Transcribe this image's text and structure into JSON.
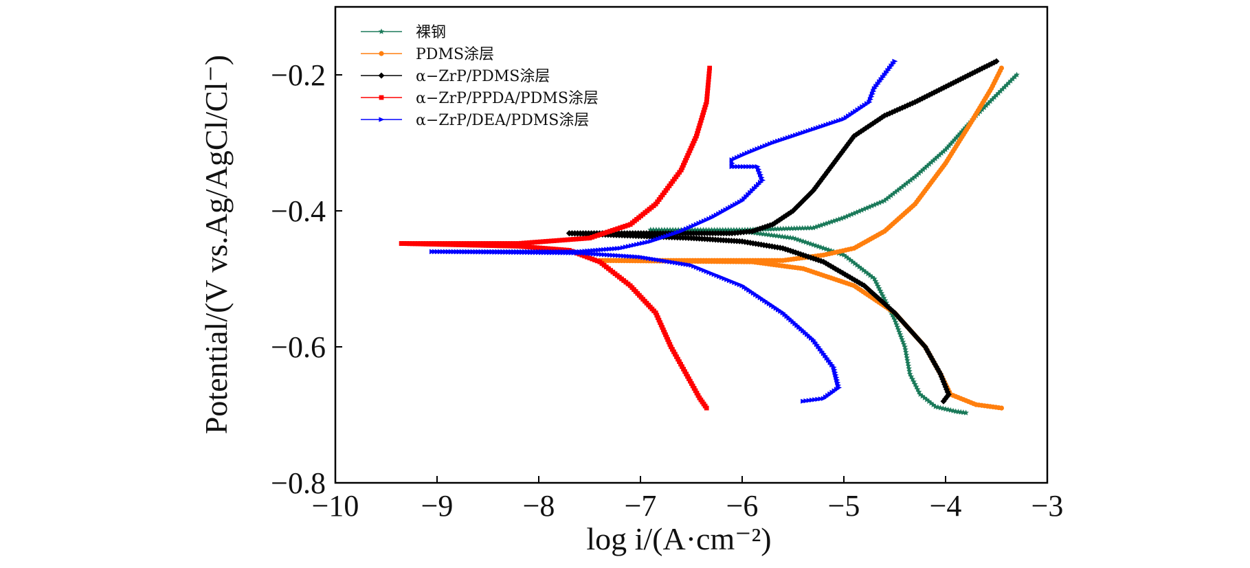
{
  "chart_data": {
    "type": "line",
    "xlabel": "log i/(A·cm⁻²)",
    "ylabel": "Potential/(V vs.Ag/AgCl/Cl⁻)",
    "xlim": [
      -10,
      -3
    ],
    "ylim": [
      -0.8,
      -0.1
    ],
    "xticks": [
      "−10",
      "−9",
      "−8",
      "−7",
      "−6",
      "−5",
      "−4",
      "−3"
    ],
    "yticks": [
      "−0.2",
      "−0.4",
      "−0.6",
      "−0.8"
    ],
    "legend_position": "top-left",
    "grid": false,
    "series": [
      {
        "name": "裸钢",
        "color": "#1b7a5a",
        "marker": "star",
        "anodic": [
          [
            -6.9,
            -0.428
          ],
          [
            -6.0,
            -0.428
          ],
          [
            -5.3,
            -0.425
          ],
          [
            -5.0,
            -0.41
          ],
          [
            -4.6,
            -0.385
          ],
          [
            -4.3,
            -0.35
          ],
          [
            -4.0,
            -0.31
          ],
          [
            -3.7,
            -0.26
          ],
          [
            -3.5,
            -0.23
          ],
          [
            -3.3,
            -0.2
          ]
        ],
        "cathodic": [
          [
            -6.9,
            -0.428
          ],
          [
            -6.0,
            -0.43
          ],
          [
            -5.5,
            -0.44
          ],
          [
            -5.0,
            -0.465
          ],
          [
            -4.7,
            -0.5
          ],
          [
            -4.5,
            -0.56
          ],
          [
            -4.4,
            -0.6
          ],
          [
            -4.35,
            -0.64
          ],
          [
            -4.25,
            -0.67
          ],
          [
            -4.1,
            -0.688
          ],
          [
            -3.9,
            -0.695
          ],
          [
            -3.8,
            -0.697
          ]
        ]
      },
      {
        "name": "PDMS涂层",
        "color": "#ff7f0e",
        "marker": "circle",
        "anodic": [
          [
            -7.4,
            -0.473
          ],
          [
            -5.6,
            -0.473
          ],
          [
            -5.2,
            -0.465
          ],
          [
            -4.9,
            -0.455
          ],
          [
            -4.6,
            -0.43
          ],
          [
            -4.3,
            -0.39
          ],
          [
            -4.0,
            -0.33
          ],
          [
            -3.75,
            -0.27
          ],
          [
            -3.55,
            -0.22
          ],
          [
            -3.45,
            -0.19
          ]
        ],
        "cathodic": [
          [
            -7.4,
            -0.473
          ],
          [
            -5.9,
            -0.475
          ],
          [
            -5.4,
            -0.485
          ],
          [
            -4.9,
            -0.51
          ],
          [
            -4.5,
            -0.55
          ],
          [
            -4.2,
            -0.6
          ],
          [
            -4.05,
            -0.64
          ],
          [
            -3.95,
            -0.67
          ],
          [
            -3.7,
            -0.685
          ],
          [
            -3.45,
            -0.69
          ]
        ]
      },
      {
        "name": "α−ZrP/PDMS涂层",
        "color": "#000000",
        "marker": "diamond",
        "anodic": [
          [
            -7.7,
            -0.433
          ],
          [
            -6.1,
            -0.433
          ],
          [
            -5.9,
            -0.43
          ],
          [
            -5.7,
            -0.42
          ],
          [
            -5.5,
            -0.4
          ],
          [
            -5.3,
            -0.37
          ],
          [
            -5.1,
            -0.33
          ],
          [
            -4.9,
            -0.29
          ],
          [
            -4.6,
            -0.26
          ],
          [
            -4.3,
            -0.24
          ],
          [
            -3.9,
            -0.21
          ],
          [
            -3.5,
            -0.18
          ]
        ],
        "cathodic": [
          [
            -7.7,
            -0.433
          ],
          [
            -6.5,
            -0.44
          ],
          [
            -6.0,
            -0.445
          ],
          [
            -5.6,
            -0.455
          ],
          [
            -5.2,
            -0.475
          ],
          [
            -4.8,
            -0.51
          ],
          [
            -4.5,
            -0.55
          ],
          [
            -4.2,
            -0.6
          ],
          [
            -4.05,
            -0.64
          ],
          [
            -3.97,
            -0.67
          ],
          [
            -4.02,
            -0.68
          ]
        ]
      },
      {
        "name": "α−ZrP/PPDA/PDMS涂层",
        "color": "#ff0000",
        "marker": "square",
        "anodic": [
          [
            -9.35,
            -0.448
          ],
          [
            -8.2,
            -0.448
          ],
          [
            -7.5,
            -0.44
          ],
          [
            -7.1,
            -0.42
          ],
          [
            -6.85,
            -0.39
          ],
          [
            -6.6,
            -0.34
          ],
          [
            -6.45,
            -0.29
          ],
          [
            -6.35,
            -0.24
          ],
          [
            -6.32,
            -0.19
          ]
        ],
        "cathodic": [
          [
            -9.35,
            -0.448
          ],
          [
            -8.2,
            -0.452
          ],
          [
            -7.7,
            -0.458
          ],
          [
            -7.4,
            -0.475
          ],
          [
            -7.1,
            -0.51
          ],
          [
            -6.85,
            -0.55
          ],
          [
            -6.7,
            -0.6
          ],
          [
            -6.55,
            -0.64
          ],
          [
            -6.42,
            -0.675
          ],
          [
            -6.35,
            -0.69
          ]
        ]
      },
      {
        "name": "α−ZrP/DEA/PDMS涂层",
        "color": "#0000ff",
        "marker": "triangle",
        "anodic": [
          [
            -9.05,
            -0.46
          ],
          [
            -7.6,
            -0.46
          ],
          [
            -7.2,
            -0.455
          ],
          [
            -6.9,
            -0.445
          ],
          [
            -6.6,
            -0.43
          ],
          [
            -6.3,
            -0.41
          ],
          [
            -6.0,
            -0.385
          ],
          [
            -5.8,
            -0.355
          ],
          [
            -5.85,
            -0.335
          ],
          [
            -6.1,
            -0.335
          ],
          [
            -6.1,
            -0.325
          ],
          [
            -5.95,
            -0.315
          ],
          [
            -5.7,
            -0.3
          ],
          [
            -5.4,
            -0.285
          ],
          [
            -5.0,
            -0.265
          ],
          [
            -4.75,
            -0.24
          ],
          [
            -4.7,
            -0.22
          ],
          [
            -4.6,
            -0.2
          ],
          [
            -4.5,
            -0.18
          ]
        ],
        "cathodic": [
          [
            -9.05,
            -0.46
          ],
          [
            -7.6,
            -0.462
          ],
          [
            -7.0,
            -0.468
          ],
          [
            -6.5,
            -0.48
          ],
          [
            -6.0,
            -0.51
          ],
          [
            -5.6,
            -0.55
          ],
          [
            -5.3,
            -0.59
          ],
          [
            -5.1,
            -0.63
          ],
          [
            -5.05,
            -0.66
          ],
          [
            -5.2,
            -0.676
          ],
          [
            -5.4,
            -0.68
          ]
        ]
      }
    ]
  }
}
